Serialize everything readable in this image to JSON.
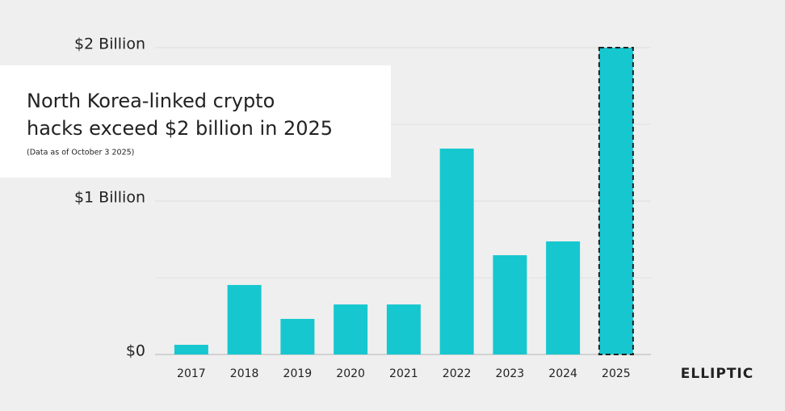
{
  "chart_data": {
    "type": "bar",
    "title": [
      "North Korea-linked crypto",
      "hacks exceed $2 billion in 2025"
    ],
    "subtitle": "(Data as of October 3 2025)",
    "brand": "ELLIPTIC",
    "categories": [
      "2017",
      "2018",
      "2019",
      "2020",
      "2021",
      "2022",
      "2023",
      "2024",
      "2025"
    ],
    "values": [
      0.063,
      0.453,
      0.232,
      0.326,
      0.326,
      1.342,
      0.647,
      0.737,
      2.0
    ],
    "color": "#17c7cf",
    "dashed_border_last": true,
    "ylim": [
      0,
      2.05
    ],
    "yticks": [
      {
        "value": 0,
        "label": "$0"
      },
      {
        "value": 1,
        "label": "$1 Billion"
      },
      {
        "value": 2,
        "label": "$2 Billion"
      }
    ],
    "minor_yticks": [
      0.5,
      1.5
    ],
    "grid": true
  }
}
